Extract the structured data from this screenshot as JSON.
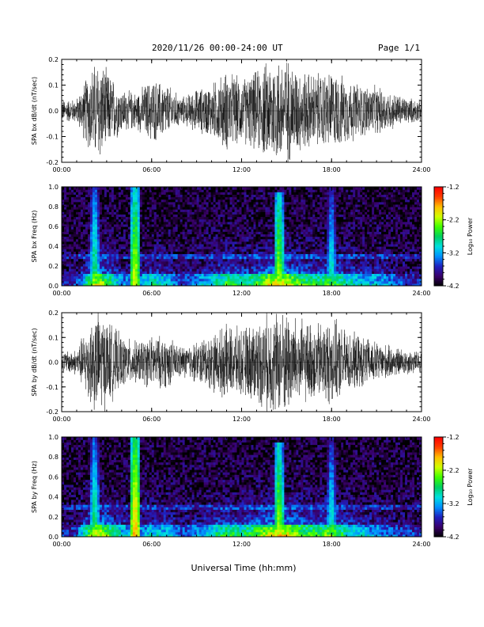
{
  "header": {
    "title": "2020/11/26  00:00-24:00 UT",
    "page": "Page 1/1"
  },
  "xlabel": "Universal Time (hh:mm)",
  "colors": {
    "trace": "#000000",
    "spectrogram_background": "#20004a",
    "colormap": [
      "#000000",
      "#3a006a",
      "#2020c0",
      "#0090ff",
      "#00e0e0",
      "#00d060",
      "#40ff00",
      "#d0ff00",
      "#ffc000",
      "#ff4000",
      "#ff0000"
    ]
  },
  "chart_data": [
    {
      "type": "line",
      "ylabel": "SPA bx dB/dt (nT/sec)",
      "xlim": [
        "00:00",
        "24:00"
      ],
      "ylim": [
        -0.2,
        0.2
      ],
      "x_ticks": [
        "00:00",
        "06:00",
        "12:00",
        "18:00",
        "24:00"
      ],
      "y_ticks": [
        "-0.2",
        "-0.1",
        "0.0",
        "0.1",
        "0.2"
      ],
      "series": [
        {
          "x_hours": [
            0,
            1,
            2,
            2.5,
            3,
            4,
            5,
            6,
            7,
            8,
            9,
            10,
            11,
            12,
            13,
            14,
            15,
            16,
            17,
            18,
            19,
            20,
            21,
            22,
            23,
            24
          ],
          "envelope_amplitude": [
            0.04,
            0.045,
            0.17,
            0.2,
            0.15,
            0.08,
            0.07,
            0.12,
            0.1,
            0.05,
            0.08,
            0.1,
            0.15,
            0.12,
            0.15,
            0.2,
            0.2,
            0.15,
            0.14,
            0.15,
            0.12,
            0.1,
            0.09,
            0.07,
            0.05,
            0.04
          ]
        }
      ]
    },
    {
      "type": "heatmap",
      "ylabel": "SPA bx Freq (Hz)",
      "xlim": [
        "00:00",
        "24:00"
      ],
      "ylim": [
        0.0,
        1.0
      ],
      "x_ticks": [
        "00:00",
        "06:00",
        "12:00",
        "18:00",
        "24:00"
      ],
      "y_ticks": [
        "0.0",
        "0.2",
        "0.4",
        "0.6",
        "0.8",
        "1.0"
      ],
      "colorbar_label": "Log₁₀ Power",
      "colorbar_range": [
        -4.2,
        -1.2
      ],
      "colorbar_ticks": [
        "-1.2",
        "-2.2",
        "-3.2",
        "-4.2"
      ],
      "features": [
        {
          "x_hours": 2.2,
          "fmax": 1.0,
          "level": -2.4
        },
        {
          "x_hours": 4.9,
          "fmax": 1.0,
          "level": -1.9
        },
        {
          "x_hours": 14.5,
          "fmax": 0.95,
          "level": -2.0
        },
        {
          "x_hours": 18.0,
          "fmax": 1.0,
          "level": -2.6
        }
      ]
    },
    {
      "type": "line",
      "ylabel": "SPA by dB/dt (nT/sec)",
      "xlim": [
        "00:00",
        "24:00"
      ],
      "ylim": [
        -0.2,
        0.2
      ],
      "x_ticks": [
        "00:00",
        "06:00",
        "12:00",
        "18:00",
        "24:00"
      ],
      "y_ticks": [
        "-0.2",
        "-0.1",
        "0.0",
        "0.1",
        "0.2"
      ],
      "series": [
        {
          "x_hours": [
            0,
            1,
            2,
            2.5,
            3,
            4,
            5,
            6,
            7,
            8,
            9,
            10,
            11,
            12,
            13,
            14,
            15,
            16,
            17,
            18,
            19,
            20,
            21,
            22,
            23,
            24
          ],
          "envelope_amplitude": [
            0.04,
            0.05,
            0.18,
            0.2,
            0.17,
            0.1,
            0.08,
            0.1,
            0.1,
            0.06,
            0.08,
            0.11,
            0.14,
            0.13,
            0.16,
            0.2,
            0.2,
            0.16,
            0.15,
            0.17,
            0.12,
            0.1,
            0.08,
            0.06,
            0.05,
            0.04
          ]
        }
      ]
    },
    {
      "type": "heatmap",
      "ylabel": "SPA by Freq (Hz)",
      "xlim": [
        "00:00",
        "24:00"
      ],
      "ylim": [
        0.0,
        1.0
      ],
      "x_ticks": [
        "00:00",
        "06:00",
        "12:00",
        "18:00",
        "24:00"
      ],
      "y_ticks": [
        "0.0",
        "0.2",
        "0.4",
        "0.6",
        "0.8",
        "1.0"
      ],
      "colorbar_label": "Log₁₀ Power",
      "colorbar_range": [
        -4.2,
        -1.2
      ],
      "colorbar_ticks": [
        "-1.2",
        "-2.2",
        "-3.2",
        "-4.2"
      ],
      "features": [
        {
          "x_hours": 2.2,
          "fmax": 1.0,
          "level": -2.4
        },
        {
          "x_hours": 4.9,
          "fmax": 1.0,
          "level": -1.6
        },
        {
          "x_hours": 14.5,
          "fmax": 0.95,
          "level": -2.0
        },
        {
          "x_hours": 18.0,
          "fmax": 1.0,
          "level": -2.6
        }
      ]
    }
  ]
}
